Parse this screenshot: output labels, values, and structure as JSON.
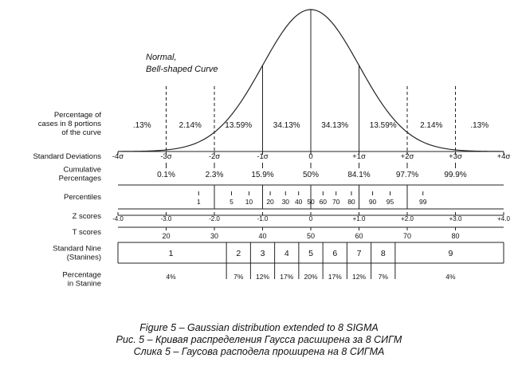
{
  "curve_label": {
    "line1": "Normal,",
    "line2": "Bell-shaped Curve"
  },
  "rows": {
    "cases": {
      "label": [
        "Percentage of",
        "cases in 8 portions",
        "of the curve"
      ],
      "values": [
        ".13%",
        "2.14%",
        "13.59%",
        "34.13%",
        "34.13%",
        "13.59%",
        "2.14%",
        ".13%"
      ]
    },
    "std_dev": {
      "label": [
        "Standard Deviations"
      ],
      "ticks": [
        "-4σ",
        "-3σ",
        "-2σ",
        "-1σ",
        "0",
        "+1σ",
        "+2σ",
        "+3σ",
        "+4σ"
      ]
    },
    "cumulative": {
      "label": [
        "Cumulative",
        "Percentages"
      ],
      "values": [
        "0.1%",
        "2.3%",
        "15.9%",
        "50%",
        "84.1%",
        "97.7%",
        "99.9%"
      ]
    },
    "percentiles": {
      "label": [
        "Percentiles"
      ],
      "values": [
        "1",
        "5",
        "10",
        "20",
        "30",
        "40",
        "50",
        "60",
        "70",
        "80",
        "90",
        "95",
        "99"
      ]
    },
    "z_scores": {
      "label": [
        "Z scores"
      ],
      "values": [
        "-4.0",
        "-3.0",
        "-2.0",
        "-1.0",
        "0",
        "+1.0",
        "+2.0",
        "+3.0",
        "+4.0"
      ]
    },
    "t_scores": {
      "label": [
        "T scores"
      ],
      "values": [
        "20",
        "30",
        "40",
        "50",
        "60",
        "70",
        "80"
      ]
    },
    "stanines": {
      "label": [
        "Standard Nine",
        "(Stanines)"
      ],
      "values": [
        "1",
        "2",
        "3",
        "4",
        "5",
        "6",
        "7",
        "8",
        "9"
      ]
    },
    "stanine_pct": {
      "label": [
        "Percentage",
        "in Stanine"
      ],
      "values": [
        "4%",
        "7%",
        "12%",
        "17%",
        "20%",
        "17%",
        "12%",
        "7%",
        "4%"
      ]
    }
  },
  "captions": [
    "Figure 5 – Gaussian distribution extended to 8 SIGMA",
    "Рис. 5 – Кривая распределения Гаусса расширена за 8 СИГМ",
    "Слика 5 – Гаусова расподела проширена на 8 СИГМА"
  ]
}
